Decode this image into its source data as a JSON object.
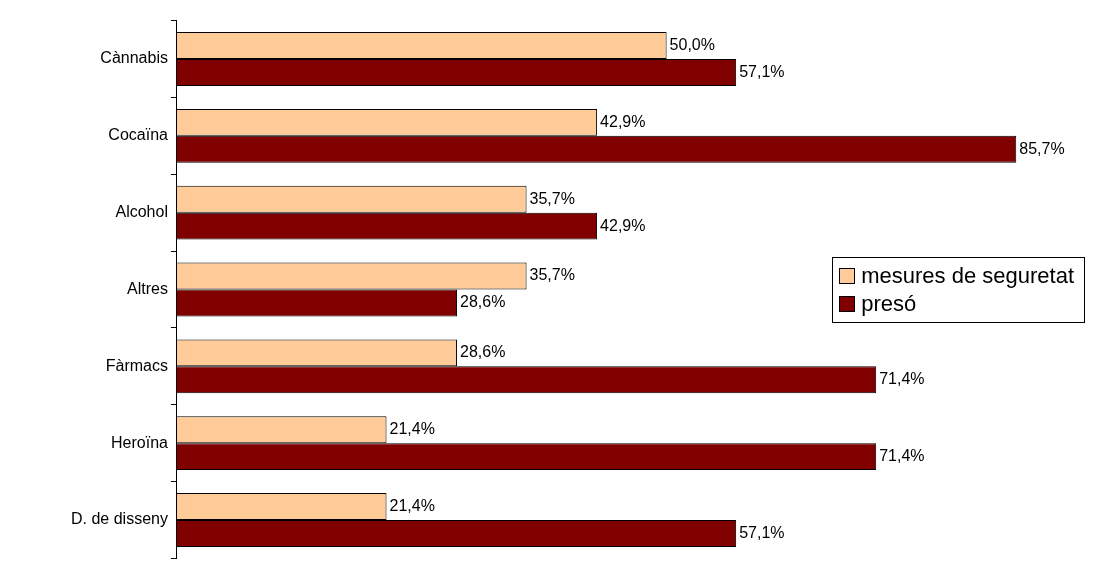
{
  "chart_data": {
    "type": "bar",
    "orientation": "horizontal",
    "tick_labels": "y",
    "categories": [
      "Cànnabis",
      "Cocaïna",
      "Alcohol",
      "Altres",
      "Fàrmacs",
      "Heroïna",
      "D. de disseny"
    ],
    "series": [
      {
        "name": "mesures de seguretat",
        "color": "#ffcc99",
        "values": [
          50.0,
          42.9,
          35.7,
          35.7,
          28.6,
          21.4,
          21.4
        ],
        "value_labels": [
          "50,0%",
          "42,9%",
          "35,7%",
          "35,7%",
          "28,6%",
          "21,4%",
          "21,4%"
        ]
      },
      {
        "name": "presó",
        "color": "#800000",
        "values": [
          57.1,
          85.7,
          42.9,
          28.6,
          71.4,
          71.4,
          57.1
        ],
        "value_labels": [
          "57,1%",
          "85,7%",
          "42,9%",
          "28,6%",
          "71,4%",
          "71,4%",
          "57,1%"
        ]
      }
    ],
    "legend": "right"
  }
}
